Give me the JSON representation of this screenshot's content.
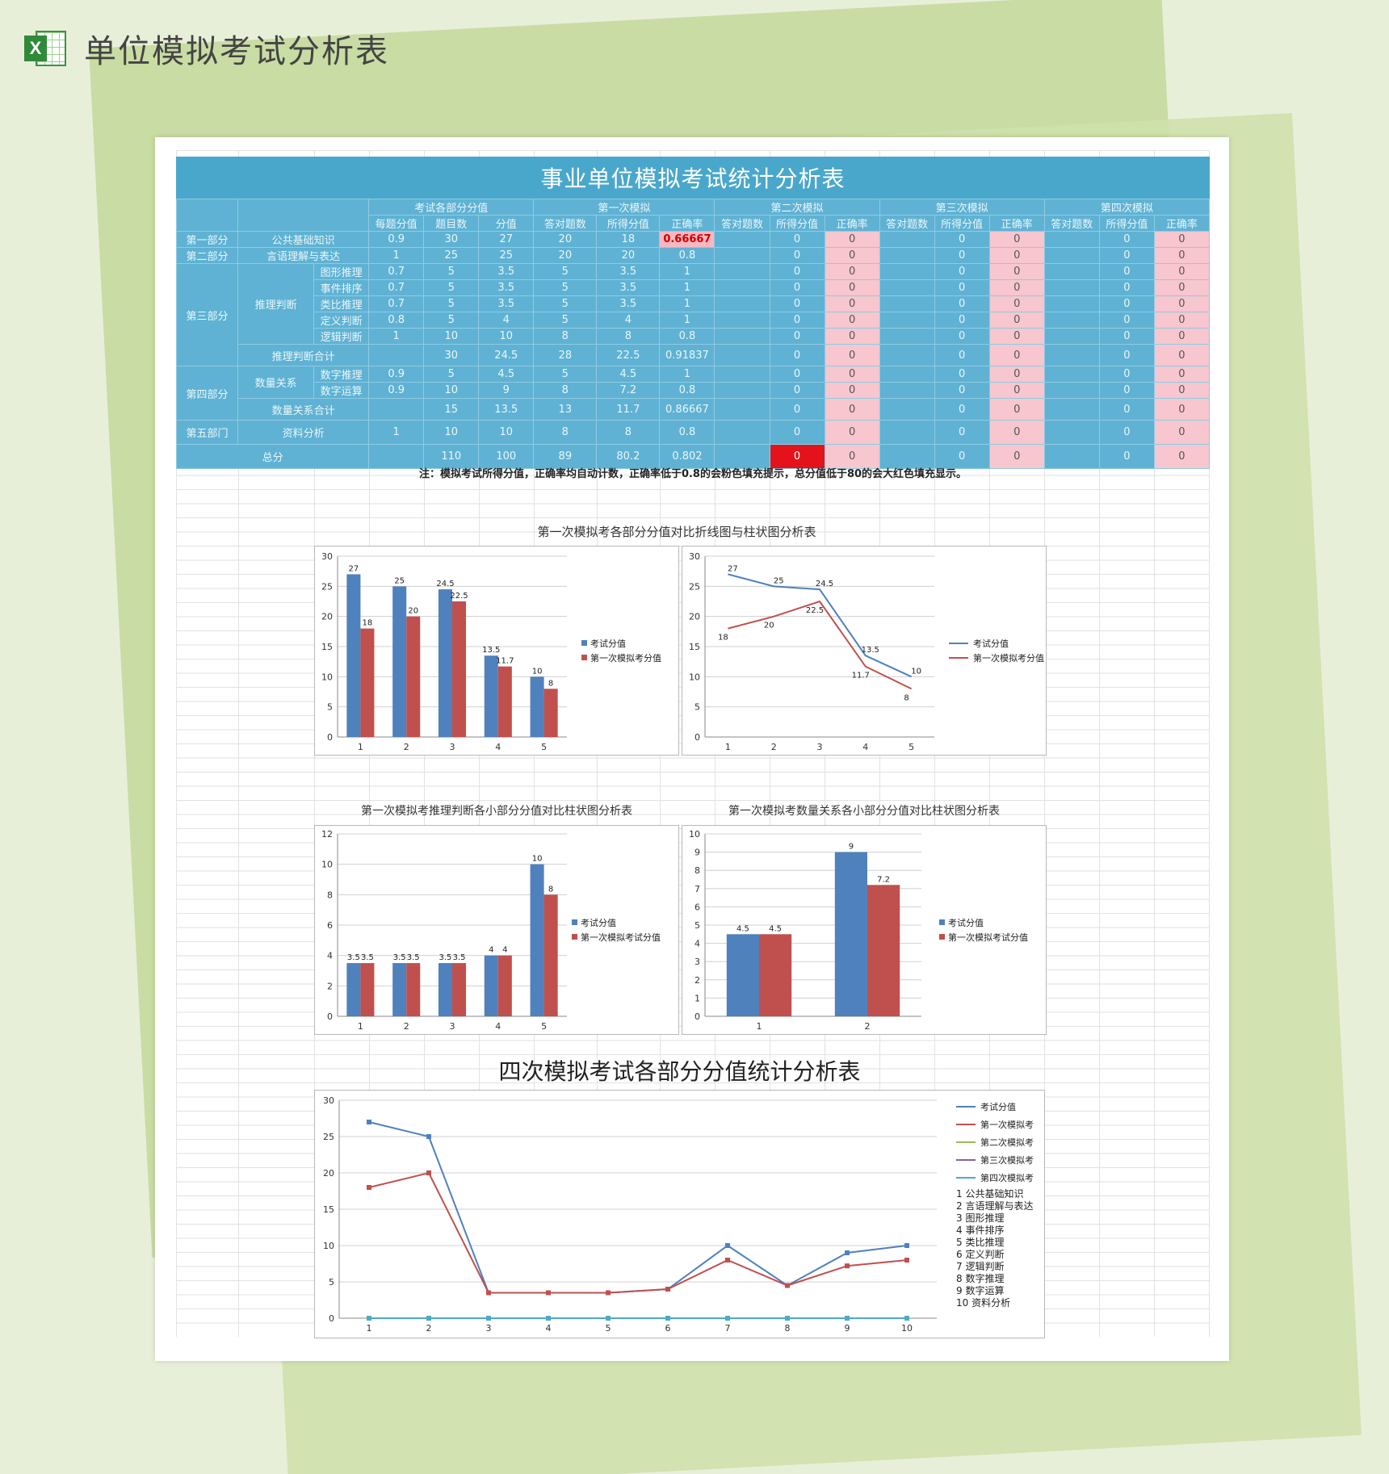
{
  "header": {
    "title": "单位模拟考试分析表",
    "icon": "excel-icon"
  },
  "table": {
    "banner": "事业单位模拟考试统计分析表",
    "groups": [
      "考试各部分分值",
      "第一次模拟",
      "第二次模拟",
      "第三次模拟",
      "第四次模拟"
    ],
    "subheaders": [
      "每题分值",
      "题目数",
      "分值",
      "答对题数",
      "所得分值",
      "正确率",
      "答对题数",
      "所得分值",
      "正确率",
      "答对题数",
      "所得分值",
      "正确率",
      "答对题数",
      "所得分值",
      "正确率"
    ],
    "labels": {
      "p1": "第一部分",
      "p1_sub": "公共基础知识",
      "p2": "第二部分",
      "p2_sub": "言语理解与表达",
      "p3": "第三部分",
      "p3_mid": "推理判断",
      "p3_subs": [
        "图形推理",
        "事件排序",
        "类比推理",
        "定义判断",
        "逻辑判断"
      ],
      "p3_total": "推理判断合计",
      "p4": "第四部分",
      "p4_mid": "数量关系",
      "p4_subs": [
        "数字推理",
        "数字运算"
      ],
      "p4_total": "数量关系合计",
      "p5": "第五部门",
      "p5_sub": "资料分析",
      "total": "总分"
    },
    "rows": [
      [
        "0.9",
        "30",
        "27",
        "20",
        "18",
        "0.66667",
        "",
        "0",
        "0",
        "",
        "0",
        "0",
        "",
        "0",
        "0"
      ],
      [
        "1",
        "25",
        "25",
        "20",
        "20",
        "0.8",
        "",
        "0",
        "0",
        "",
        "0",
        "0",
        "",
        "0",
        "0"
      ],
      [
        "0.7",
        "5",
        "3.5",
        "5",
        "3.5",
        "1",
        "",
        "0",
        "0",
        "",
        "0",
        "0",
        "",
        "0",
        "0"
      ],
      [
        "0.7",
        "5",
        "3.5",
        "5",
        "3.5",
        "1",
        "",
        "0",
        "0",
        "",
        "0",
        "0",
        "",
        "0",
        "0"
      ],
      [
        "0.7",
        "5",
        "3.5",
        "5",
        "3.5",
        "1",
        "",
        "0",
        "0",
        "",
        "0",
        "0",
        "",
        "0",
        "0"
      ],
      [
        "0.8",
        "5",
        "4",
        "5",
        "4",
        "1",
        "",
        "0",
        "0",
        "",
        "0",
        "0",
        "",
        "0",
        "0"
      ],
      [
        "1",
        "10",
        "10",
        "8",
        "8",
        "0.8",
        "",
        "0",
        "0",
        "",
        "0",
        "0",
        "",
        "0",
        "0"
      ],
      [
        "",
        "30",
        "24.5",
        "28",
        "22.5",
        "0.91837",
        "",
        "0",
        "0",
        "",
        "0",
        "0",
        "",
        "0",
        "0"
      ],
      [
        "0.9",
        "5",
        "4.5",
        "5",
        "4.5",
        "1",
        "",
        "0",
        "0",
        "",
        "0",
        "0",
        "",
        "0",
        "0"
      ],
      [
        "0.9",
        "10",
        "9",
        "8",
        "7.2",
        "0.8",
        "",
        "0",
        "0",
        "",
        "0",
        "0",
        "",
        "0",
        "0"
      ],
      [
        "",
        "15",
        "13.5",
        "13",
        "11.7",
        "0.86667",
        "",
        "0",
        "0",
        "",
        "0",
        "0",
        "",
        "0",
        "0"
      ],
      [
        "1",
        "10",
        "10",
        "8",
        "8",
        "0.8",
        "",
        "0",
        "0",
        "",
        "0",
        "0",
        "",
        "0",
        "0"
      ],
      [
        "",
        "110",
        "100",
        "89",
        "80.2",
        "0.802",
        "",
        "0",
        "0",
        "",
        "0",
        "0",
        "",
        "0",
        "0"
      ]
    ],
    "note": "注：模拟考试所得分值，正确率均自动计数，正确率低于0.8的会粉色填充提示，总分值低于80的会大红色填充显示。"
  },
  "colors": {
    "blue": "#4f81bd",
    "red": "#c0504d",
    "green": "#9bbb59",
    "purple": "#8064a2",
    "teal": "#4bacc6",
    "banner": "#4aa7cc",
    "pink": "#f7c6ce"
  },
  "chart_data": [
    {
      "type": "bar",
      "title": "第一次模拟考各部分分值对比折线图与柱状图分析表",
      "categories": [
        "1",
        "2",
        "3",
        "4",
        "5"
      ],
      "series": [
        {
          "name": "考试分值",
          "values": [
            27,
            25,
            24.5,
            13.5,
            10
          ]
        },
        {
          "name": "第一次模拟考分值",
          "values": [
            18,
            20,
            22.5,
            11.7,
            8
          ]
        }
      ],
      "ylim": [
        0,
        30
      ],
      "yticks": [
        0,
        5,
        10,
        15,
        20,
        25,
        30
      ],
      "legend": "right"
    },
    {
      "type": "line",
      "title": "",
      "categories": [
        "1",
        "2",
        "3",
        "4",
        "5"
      ],
      "series": [
        {
          "name": "考试分值",
          "values": [
            27,
            25,
            24.5,
            13.5,
            10
          ]
        },
        {
          "name": "第一次模拟考分值",
          "values": [
            18,
            20,
            22.5,
            11.7,
            8
          ]
        }
      ],
      "ylim": [
        0,
        30
      ],
      "yticks": [
        0,
        5,
        10,
        15,
        20,
        25,
        30
      ],
      "legend": "right"
    },
    {
      "type": "bar",
      "title": "第一次模拟考推理判断各小部分分值对比柱状图分析表",
      "categories": [
        "1",
        "2",
        "3",
        "4",
        "5"
      ],
      "series": [
        {
          "name": "考试分值",
          "values": [
            3.5,
            3.5,
            3.5,
            4,
            10
          ]
        },
        {
          "name": "第一次模拟考试分值",
          "values": [
            3.5,
            3.5,
            3.5,
            4,
            8
          ]
        }
      ],
      "ylim": [
        0,
        12
      ],
      "yticks": [
        0,
        2,
        4,
        6,
        8,
        10,
        12
      ],
      "legend": "right"
    },
    {
      "type": "bar",
      "title": "第一次模拟考数量关系各小部分分值对比柱状图分析表",
      "categories": [
        "1",
        "2"
      ],
      "series": [
        {
          "name": "考试分值",
          "values": [
            4.5,
            9
          ]
        },
        {
          "name": "第一次模拟考试分值",
          "values": [
            4.5,
            7.2
          ]
        }
      ],
      "ylim": [
        0,
        10
      ],
      "yticks": [
        0,
        1,
        2,
        3,
        4,
        5,
        6,
        7,
        8,
        9,
        10
      ],
      "legend": "right"
    },
    {
      "type": "line",
      "title": "四次模拟考试各部分分值统计分析表",
      "categories": [
        "1",
        "2",
        "3",
        "4",
        "5",
        "6",
        "7",
        "8",
        "9",
        "10"
      ],
      "series": [
        {
          "name": "考试分值",
          "values": [
            27,
            25,
            3.5,
            3.5,
            3.5,
            4,
            10,
            4.5,
            9,
            10
          ]
        },
        {
          "name": "第一次模拟考",
          "values": [
            18,
            20,
            3.5,
            3.5,
            3.5,
            4,
            8,
            4.5,
            7.2,
            8
          ]
        },
        {
          "name": "第二次模拟考",
          "values": [
            0,
            0,
            0,
            0,
            0,
            0,
            0,
            0,
            0,
            0
          ]
        },
        {
          "name": "第三次模拟考",
          "values": [
            0,
            0,
            0,
            0,
            0,
            0,
            0,
            0,
            0,
            0
          ]
        },
        {
          "name": "第四次模拟考",
          "values": [
            0,
            0,
            0,
            0,
            0,
            0,
            0,
            0,
            0,
            0
          ]
        }
      ],
      "category_legend": [
        "1 公共基础知识",
        "2 言语理解与表达",
        "3 图形推理",
        "4 事件排序",
        "5 类比推理",
        "6 定义判断",
        "7 逻辑判断",
        "8 数字推理",
        "9 数字运算",
        "10 资料分析"
      ],
      "ylim": [
        0,
        30
      ],
      "yticks": [
        0,
        5,
        10,
        15,
        20,
        25,
        30
      ],
      "legend": "right"
    }
  ]
}
